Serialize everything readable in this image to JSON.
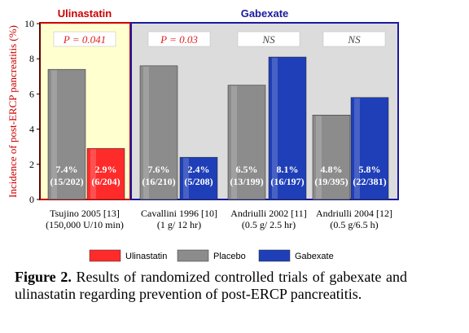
{
  "chart_data": {
    "type": "bar",
    "ylabel": "Incidence of post-ERCP pancreatitis (%)",
    "ylim": [
      0,
      10
    ],
    "yticks": [
      "0",
      "2",
      "4",
      "6",
      "8",
      "10"
    ],
    "grid": false,
    "group_headers": [
      {
        "label": "Ulinastatin",
        "color": "#cc0000"
      },
      {
        "label": "Gabexate",
        "color": "#1a1aa0"
      }
    ],
    "panel_colors": {
      "ulinastatin": "#ffffd0",
      "gabexate": "#dcdcdc",
      "ulinastatin_border": "#cc0000",
      "gabexate_border": "#1a1aa0"
    },
    "series": [
      {
        "name": "Ulinastatin",
        "color": "#ff2a2a"
      },
      {
        "name": "Placebo",
        "color": "#8c8c8c"
      },
      {
        "name": "Gabexate",
        "color": "#1f3fb8"
      }
    ],
    "categories": [
      {
        "label_lines": [
          "Tsujino 2005 [13]",
          "(150,000 U/10 min)"
        ],
        "panel": "ulinastatin",
        "pvalue": "P = 0.041",
        "pvalue_style": "red",
        "bars": [
          {
            "series": "Placebo",
            "value": 7.4,
            "pct": "7.4%",
            "frac": "(15/202)"
          },
          {
            "series": "Ulinastatin",
            "value": 2.9,
            "pct": "2.9%",
            "frac": "(6/204)"
          }
        ]
      },
      {
        "label_lines": [
          "Cavallini 1996 [10]",
          "(1 g/ 12 hr)"
        ],
        "panel": "gabexate",
        "pvalue": "P = 0.03",
        "pvalue_style": "red",
        "bars": [
          {
            "series": "Placebo",
            "value": 7.6,
            "pct": "7.6%",
            "frac": "(16/210)"
          },
          {
            "series": "Gabexate",
            "value": 2.4,
            "pct": "2.4%",
            "frac": "(5/208)"
          }
        ]
      },
      {
        "label_lines": [
          "Andriulli 2002 [11]",
          "(0.5 g/ 2.5 hr)"
        ],
        "panel": "gabexate",
        "pvalue": "NS",
        "pvalue_style": "ns",
        "bars": [
          {
            "series": "Placebo",
            "value": 6.5,
            "pct": "6.5%",
            "frac": "(13/199)"
          },
          {
            "series": "Gabexate",
            "value": 8.1,
            "pct": "8.1%",
            "frac": "(16/197)"
          }
        ]
      },
      {
        "label_lines": [
          "Andriulli 2004 [12]",
          "(0.5 g/6.5 h)"
        ],
        "panel": "gabexate",
        "pvalue": "NS",
        "pvalue_style": "ns",
        "bars": [
          {
            "series": "Placebo",
            "value": 4.8,
            "pct": "4.8%",
            "frac": "(19/395)"
          },
          {
            "series": "Gabexate",
            "value": 5.8,
            "pct": "5.8%",
            "frac": "(22/381)"
          }
        ]
      }
    ],
    "legend": [
      "Ulinastatin",
      "Placebo",
      "Gabexate"
    ],
    "legend_position": "bottom"
  },
  "caption": {
    "label": "Figure 2.",
    "text": " Results of randomized controlled trials of gabexate and ulinastatin regarding prevention of post-ERCP pancreatitis."
  }
}
